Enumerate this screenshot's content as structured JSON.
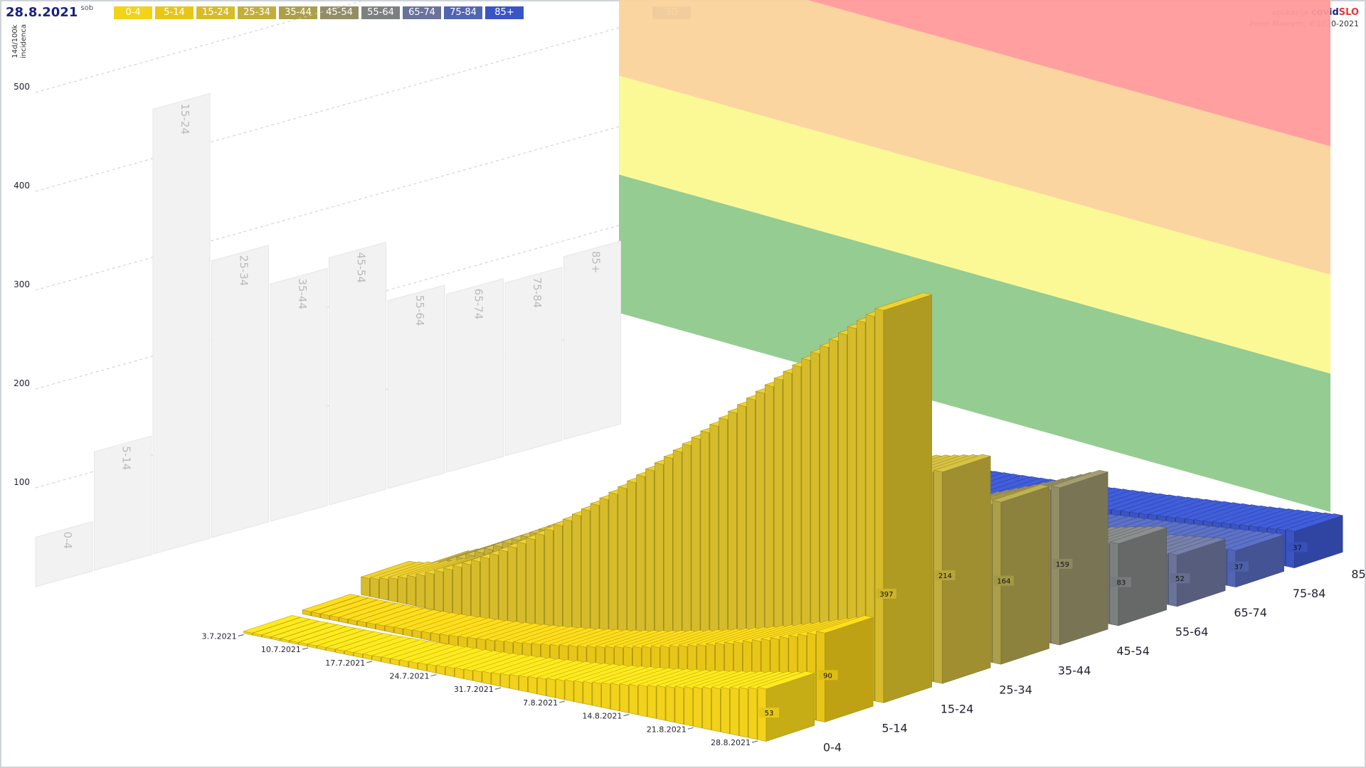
{
  "header": {
    "date": "28.8.2021",
    "day": "sob"
  },
  "legend": [
    {
      "label": "0-4",
      "color": "#f2d21a"
    },
    {
      "label": "5-14",
      "color": "#e8c618"
    },
    {
      "label": "15-24",
      "color": "#d6bc2a"
    },
    {
      "label": "25-34",
      "color": "#c2ae3c"
    },
    {
      "label": "35-44",
      "color": "#ab9f4a"
    },
    {
      "label": "45-54",
      "color": "#938d66"
    },
    {
      "label": "55-64",
      "color": "#7d8080"
    },
    {
      "label": "65-74",
      "color": "#6a7399"
    },
    {
      "label": "75-84",
      "color": "#5265b3"
    },
    {
      "label": "85+",
      "color": "#3a54c4"
    }
  ],
  "toggle_3d": "3D",
  "credit": {
    "app_prefix": "aplikacija",
    "app_name_a": "covid",
    "app_name_b": "SLO",
    "author": "Peter Malovrh, ©2020-2021"
  },
  "ylabel": [
    "14d/100k",
    "incidenca"
  ],
  "zones": [
    {
      "from": 0,
      "to": 140,
      "color": "#8fc98c"
    },
    {
      "from": 140,
      "to": 240,
      "color": "#fbf98f"
    },
    {
      "from": 240,
      "to": 370,
      "color": "#fbd39a"
    },
    {
      "from": 370,
      "to": 530,
      "color": "#ff9a9a"
    }
  ],
  "chart_data": {
    "type": "bar",
    "title": "",
    "ylabel": "14d/100k incidenca",
    "yticks": [
      100,
      200,
      300,
      400,
      500
    ],
    "ylim": [
      0,
      530
    ],
    "date_ticks": [
      "3.7.2021",
      "10.7.2021",
      "17.7.2021",
      "24.7.2021",
      "31.7.2021",
      "7.8.2021",
      "14.8.2021",
      "21.8.2021",
      "28.8.2021"
    ],
    "categories": [
      "0-4",
      "5-14",
      "15-24",
      "25-34",
      "35-44",
      "45-54",
      "55-64",
      "65-74",
      "75-84",
      "85+"
    ],
    "final_values": [
      53,
      90,
      397,
      214,
      164,
      159,
      83,
      52,
      37,
      37
    ],
    "max_values": [
      50,
      120,
      450,
      280,
      240,
      250,
      190,
      180,
      175,
      185
    ],
    "series_start": [
      2,
      4,
      18,
      9,
      7,
      6,
      5,
      3,
      2,
      2
    ]
  }
}
